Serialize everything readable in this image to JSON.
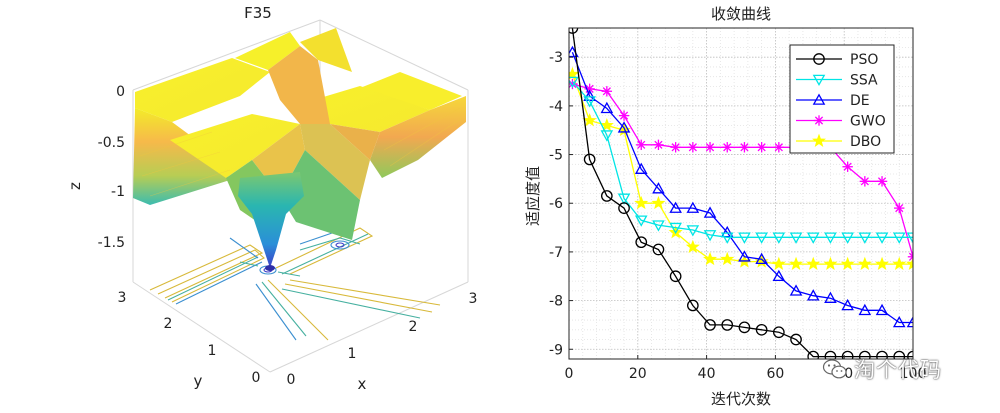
{
  "chart_data": [
    {
      "type": "surface3d",
      "title": "F35",
      "xlabel": "x",
      "ylabel": "y",
      "zlabel": "z",
      "x_ticks": [
        "0",
        "1",
        "2",
        "3"
      ],
      "y_ticks": [
        "0",
        "1",
        "2",
        "3"
      ],
      "z_ticks": [
        "0",
        "-0.5",
        "-1",
        "-1.5"
      ],
      "xlim": [
        0,
        3
      ],
      "ylim": [
        0,
        3
      ],
      "zlim": [
        -1.8,
        0
      ],
      "colormap": [
        "#2a9fd0",
        "#2ab6b0",
        "#55c28a",
        "#a5c95a",
        "#e6c441",
        "#f6b94a",
        "#f9d03e",
        "#f8ec2d",
        "#f5f529"
      ]
    },
    {
      "type": "line",
      "title": "收敛曲线",
      "xlabel": "迭代次数",
      "ylabel": "适应度值",
      "xlim": [
        0,
        100
      ],
      "ylim": [
        -9.2,
        -2.4
      ],
      "x_ticks": [
        "0",
        "20",
        "40",
        "60",
        "80",
        "100"
      ],
      "y_ticks": [
        "-3",
        "-4",
        "-5",
        "-6",
        "-7",
        "-8",
        "-9"
      ],
      "x_tick_values": [
        0,
        20,
        40,
        60,
        80,
        100
      ],
      "y_tick_values": [
        -3,
        -4,
        -5,
        -6,
        -7,
        -8,
        -9
      ],
      "legend_position": "top-right",
      "x": [
        1,
        6,
        11,
        16,
        21,
        26,
        31,
        36,
        41,
        46,
        51,
        56,
        61,
        66,
        71,
        76,
        81,
        86,
        91,
        96,
        100
      ],
      "series": [
        {
          "name": "PSO",
          "color": "#000000",
          "marker": "circle",
          "values": [
            -2.4,
            -5.1,
            -5.85,
            -6.1,
            -6.8,
            -6.95,
            -7.5,
            -8.1,
            -8.5,
            -8.5,
            -8.55,
            -8.6,
            -8.65,
            -8.8,
            -9.15,
            -9.15,
            -9.15,
            -9.15,
            -9.15,
            -9.15,
            -9.15
          ]
        },
        {
          "name": "SSA",
          "color": "#00e5e5",
          "marker": "triangle-down",
          "values": [
            -3.5,
            -3.9,
            -4.6,
            -5.9,
            -6.35,
            -6.45,
            -6.5,
            -6.55,
            -6.65,
            -6.7,
            -6.7,
            -6.7,
            -6.7,
            -6.7,
            -6.7,
            -6.7,
            -6.7,
            -6.7,
            -6.7,
            -6.7,
            -6.7
          ]
        },
        {
          "name": "DE",
          "color": "#0000ff",
          "marker": "triangle-up",
          "values": [
            -2.9,
            -3.8,
            -4.05,
            -4.45,
            -5.3,
            -5.7,
            -6.1,
            -6.1,
            -6.2,
            -6.6,
            -7.1,
            -7.15,
            -7.5,
            -7.8,
            -7.9,
            -7.95,
            -8.1,
            -8.2,
            -8.2,
            -8.45,
            -8.45
          ]
        },
        {
          "name": "GWO",
          "color": "#ff00ff",
          "marker": "asterisk",
          "values": [
            -3.55,
            -3.65,
            -3.7,
            -4.2,
            -4.8,
            -4.8,
            -4.85,
            -4.85,
            -4.85,
            -4.85,
            -4.85,
            -4.85,
            -4.85,
            -4.85,
            -4.85,
            -4.85,
            -5.25,
            -5.55,
            -5.55,
            -6.1,
            -7.1
          ]
        },
        {
          "name": "DBO",
          "color": "#ffff00",
          "marker": "star",
          "values": [
            -3.35,
            -4.3,
            -4.4,
            -4.5,
            -6.0,
            -6.0,
            -6.6,
            -6.9,
            -7.15,
            -7.15,
            -7.2,
            -7.2,
            -7.25,
            -7.25,
            -7.25,
            -7.25,
            -7.25,
            -7.25,
            -7.25,
            -7.25,
            -7.25
          ]
        }
      ]
    }
  ],
  "watermark": {
    "text": "淘个代码"
  }
}
